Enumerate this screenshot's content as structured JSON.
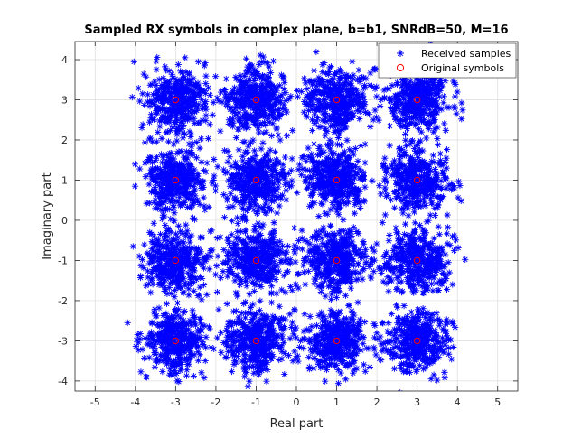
{
  "chart_data": {
    "type": "scatter",
    "title": "Sampled RX symbols in complex plane, b=b1, SNRdB=50, M=16",
    "xlabel": "Real part",
    "ylabel": "Imaginary part",
    "xlim": [
      -5.5,
      5.5
    ],
    "ylim": [
      -4.25,
      4.45
    ],
    "xticks": [
      -5,
      -4,
      -3,
      -2,
      -1,
      0,
      1,
      2,
      3,
      4,
      5
    ],
    "yticks": [
      -4,
      -3,
      -2,
      -1,
      0,
      1,
      2,
      3,
      4
    ],
    "grid": true,
    "legend_position": "top-right",
    "series": [
      {
        "name": "Received samples",
        "marker": "asterisk",
        "color": "#0000ff",
        "distribution": {
          "centers_x": [
            -3,
            -1,
            1,
            3
          ],
          "centers_y": [
            -3,
            -1,
            1,
            3
          ],
          "spread_std": 0.38,
          "samples_per_center": 400
        }
      },
      {
        "name": "Original symbols",
        "marker": "circle",
        "color": "#ff0000",
        "points": [
          [
            -3,
            3
          ],
          [
            -1,
            3
          ],
          [
            1,
            3
          ],
          [
            3,
            3
          ],
          [
            -3,
            1
          ],
          [
            -1,
            1
          ],
          [
            1,
            1
          ],
          [
            3,
            1
          ],
          [
            -3,
            -1
          ],
          [
            -1,
            -1
          ],
          [
            1,
            -1
          ],
          [
            3,
            -1
          ],
          [
            -3,
            -3
          ],
          [
            -1,
            -3
          ],
          [
            1,
            -3
          ],
          [
            3,
            -3
          ]
        ]
      }
    ]
  }
}
